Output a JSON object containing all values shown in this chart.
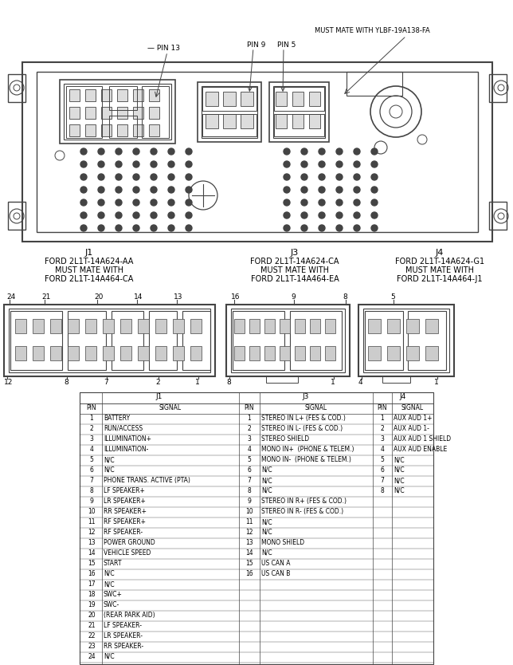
{
  "bg_color": "#ffffff",
  "line_color": "#444444",
  "text_color": "#000000",
  "j1_pins": [
    [
      1,
      "BATTERY"
    ],
    [
      2,
      "RUN/ACCESS"
    ],
    [
      3,
      "ILLUMINATION+"
    ],
    [
      4,
      "ILLUMINATION-"
    ],
    [
      5,
      "N/C"
    ],
    [
      6,
      "N/C"
    ],
    [
      7,
      "PHONE TRANS. ACTIVE (PTA)"
    ],
    [
      8,
      "LF SPEAKER+"
    ],
    [
      9,
      "LR SPEAKER+"
    ],
    [
      10,
      "RR SPEAKER+"
    ],
    [
      11,
      "RF SPEAKER+"
    ],
    [
      12,
      "RF SPEAKER-"
    ],
    [
      13,
      "POWER GROUND"
    ],
    [
      14,
      "VEHICLE SPEED"
    ],
    [
      15,
      "START"
    ],
    [
      16,
      "N/C"
    ],
    [
      17,
      "N/C"
    ],
    [
      18,
      "SWC+"
    ],
    [
      19,
      "SWC-"
    ],
    [
      20,
      "(REAR PARK AID)"
    ],
    [
      21,
      "LF SPEAKER-"
    ],
    [
      22,
      "LR SPEAKER-"
    ],
    [
      23,
      "RR SPEAKER-"
    ],
    [
      24,
      "N/C"
    ]
  ],
  "j3_pins": [
    [
      1,
      "STEREO IN L+ (FES & COD.)"
    ],
    [
      2,
      "STEREO IN L- (FES & COD.)"
    ],
    [
      3,
      "STEREO SHIELD"
    ],
    [
      4,
      "MONO IN+  (PHONE & TELEM.)"
    ],
    [
      5,
      "MONO IN-  (PHONE & TELEM.)"
    ],
    [
      6,
      "N/C"
    ],
    [
      7,
      "N/C"
    ],
    [
      8,
      "N/C"
    ],
    [
      9,
      "STEREO IN R+ (FES & COD.)"
    ],
    [
      10,
      "STEREO IN R- (FES & COD.)"
    ],
    [
      11,
      "N/C"
    ],
    [
      12,
      "N/C"
    ],
    [
      13,
      "MONO SHIELD"
    ],
    [
      14,
      "N/C"
    ],
    [
      15,
      "US CAN A"
    ],
    [
      16,
      "US CAN B"
    ]
  ],
  "j4_pins": [
    [
      1,
      "AUX AUD 1+"
    ],
    [
      2,
      "AUX AUD 1-"
    ],
    [
      3,
      "AUX AUD 1 SHIELD"
    ],
    [
      4,
      "AUX AUD ENABLE"
    ],
    [
      5,
      "N/C"
    ],
    [
      6,
      "N/C"
    ],
    [
      7,
      "N/C"
    ],
    [
      8,
      "N/C"
    ]
  ]
}
